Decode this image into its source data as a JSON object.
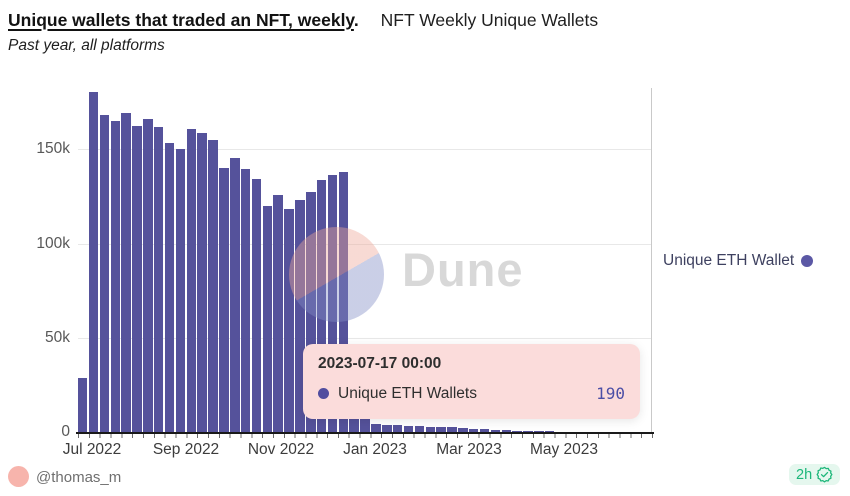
{
  "header": {
    "title_primary": "Unique wallets that traded an NFT, weekly",
    "title_period": ".",
    "title_secondary": "NFT Weekly Unique Wallets",
    "subtitle": "Past year, all platforms"
  },
  "chart_data": {
    "type": "bar",
    "title": "NFT Weekly Unique Wallets",
    "xlabel": "",
    "ylabel": "",
    "x_range": "weekly, Jul 2022 - Jul 2023",
    "ylim": [
      0,
      183000
    ],
    "grid": true,
    "legend_position": "right",
    "x_tick_labels": [
      "Jul 2022",
      "Sep 2022",
      "Nov 2022",
      "Jan 2023",
      "Mar 2023",
      "May 2023"
    ],
    "y_tick_labels": [
      "0",
      "50k",
      "100k",
      "150k"
    ],
    "series": [
      {
        "name": "Unique ETH Wallets",
        "color": "#55529b",
        "values": [
          29000,
          181000,
          168500,
          165500,
          169800,
          163000,
          166600,
          162300,
          153800,
          150800,
          161400,
          159400,
          155200,
          140700,
          146000,
          140300,
          135000,
          120400,
          126400,
          119000,
          123400,
          127800,
          134300,
          136600,
          138500,
          30000,
          8000,
          5000,
          4200,
          4000,
          3800,
          3600,
          3400,
          3200,
          3000,
          2600,
          2300,
          2000,
          1800,
          1500,
          1300,
          1100,
          1000,
          900,
          800,
          700,
          650,
          600,
          550,
          500,
          450,
          400,
          190
        ]
      }
    ]
  },
  "legend": {
    "label": "Unique ETH Wallet",
    "dot_color": "#5b58a5"
  },
  "tooltip": {
    "title": "2023-07-17 00:00",
    "series_label": "Unique ETH Wallets",
    "value": "190",
    "bg_color": "#fbdcdb",
    "value_color": "#4b4ea6"
  },
  "watermark": {
    "text": "Dune",
    "circle_pink": "#f8dcd7",
    "circle_lavender": "#cdd1e8"
  },
  "footer": {
    "author": "@thomas_m",
    "age": "2h"
  },
  "colors": {
    "bar": "#55529b",
    "accent_green": "#1db77a",
    "avatar_pink": "#f7b4ac"
  }
}
